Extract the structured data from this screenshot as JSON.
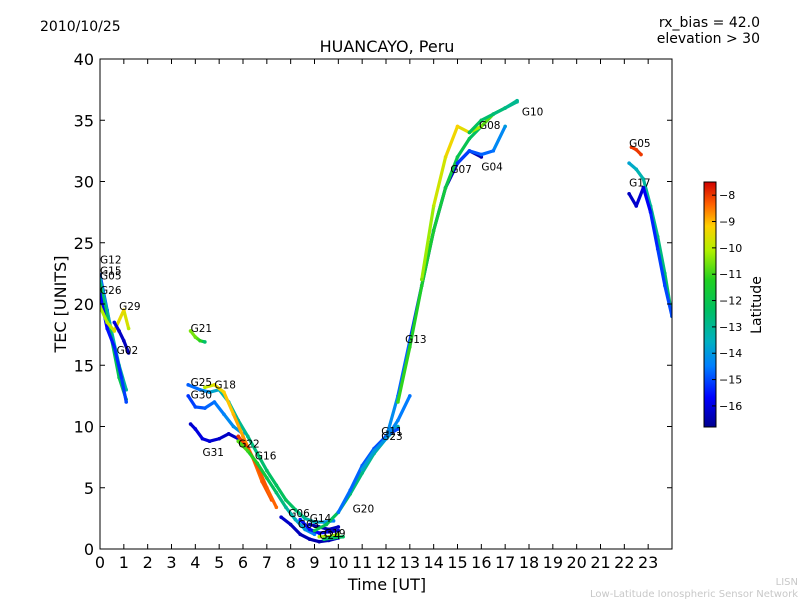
{
  "header": {
    "date": "2010/10/25",
    "rx_bias": "rx_bias = 42.0",
    "elevation": "elevation > 30",
    "title": "HUANCAYO, Peru"
  },
  "footer": {
    "line1": "LISN",
    "line2": "Low-Latitude Ionospheric Sensor Network"
  },
  "colorbar": {
    "label": "Latitude",
    "range": [
      -16.8,
      -7.5
    ],
    "ticks": [
      -8,
      -9,
      -10,
      -11,
      -12,
      -13,
      -14,
      -15,
      -16
    ],
    "tick_labels": [
      "−8",
      "−9",
      "−10",
      "−11",
      "−12",
      "−13",
      "−14",
      "−15",
      "−16"
    ]
  },
  "chart_data": {
    "type": "scatter",
    "title": "HUANCAYO, Peru",
    "xlabel": "Time [UT]",
    "ylabel": "TEC [UNITS]",
    "xlim": [
      0,
      24
    ],
    "ylim": [
      0,
      40
    ],
    "xticks": [
      0,
      1,
      2,
      3,
      4,
      5,
      6,
      7,
      8,
      9,
      10,
      11,
      12,
      13,
      14,
      15,
      16,
      17,
      18,
      19,
      20,
      21,
      22,
      23
    ],
    "yticks": [
      0,
      5,
      10,
      15,
      20,
      25,
      30,
      35,
      40
    ],
    "color_variable": "Latitude",
    "series": [
      {
        "name": "G12",
        "x": [
          0.0,
          0.3,
          0.6,
          0.9
        ],
        "y": [
          22.4,
          19.5,
          16.5,
          14.0
        ],
        "lat": [
          -14.8,
          -14.9,
          -15.0,
          -15.0
        ]
      },
      {
        "name": "G15",
        "x": [
          0.0,
          0.4,
          0.8,
          1.1
        ],
        "y": [
          22.0,
          18.5,
          15.0,
          13.0
        ],
        "lat": [
          -13.5,
          -13.4,
          -13.2,
          -13.0
        ]
      },
      {
        "name": "G05",
        "x": [
          0.0,
          0.4,
          0.8,
          1.1
        ],
        "y": [
          21.6,
          18.0,
          14.0,
          12.2
        ],
        "lat": [
          -12.5,
          -12.3,
          -12.1,
          -12.0
        ]
      },
      {
        "name": "G26",
        "x": [
          0.0,
          0.3,
          0.6,
          0.9,
          1.1
        ],
        "y": [
          20.8,
          18.0,
          16.5,
          14.0,
          12.0
        ],
        "lat": [
          -15.8,
          -15.6,
          -15.4,
          -15.2,
          -15.0
        ]
      },
      {
        "name": "G29",
        "x": [
          0.0,
          0.3,
          0.6,
          1.0,
          1.2
        ],
        "y": [
          19.8,
          18.5,
          17.8,
          19.5,
          18.0
        ],
        "lat": [
          -10.2,
          -10.0,
          -9.6,
          -9.3,
          -10.0
        ]
      },
      {
        "name": "G02",
        "x": [
          0.6,
          0.8,
          1.0,
          1.2
        ],
        "y": [
          18.5,
          17.8,
          17.0,
          16.0
        ],
        "lat": [
          -16.0,
          -16.2,
          -16.3,
          -16.4
        ]
      },
      {
        "name": "G21",
        "x": [
          3.8,
          4.0,
          4.2,
          4.4
        ],
        "y": [
          17.8,
          17.3,
          17.0,
          16.9
        ],
        "lat": [
          -10.5,
          -10.6,
          -11.2,
          -12.5
        ]
      },
      {
        "name": "G25",
        "x": [
          3.7,
          4.2,
          4.6,
          5.0,
          5.4,
          5.8,
          6.2,
          6.6,
          7.0,
          7.4,
          7.8,
          8.2,
          8.6,
          9.0,
          9.4,
          9.8
        ],
        "y": [
          13.4,
          13.0,
          12.8,
          13.0,
          12.0,
          10.5,
          9.2,
          7.8,
          6.4,
          5.2,
          4.0,
          3.2,
          2.5,
          2.2,
          2.2,
          2.3
        ],
        "lat": [
          -14.8,
          -14.5,
          -14.0,
          -13.5,
          -13.2,
          -13.0,
          -12.8,
          -12.6,
          -12.4,
          -12.3,
          -12.2,
          -12.5,
          -13.0,
          -13.5,
          -14.0,
          -14.5
        ]
      },
      {
        "name": "G30",
        "x": [
          3.7,
          4.0,
          4.4,
          4.8,
          5.2,
          5.6,
          6.0
        ],
        "y": [
          12.5,
          11.6,
          11.5,
          12.0,
          11.0,
          10.0,
          9.4
        ],
        "lat": [
          -15.2,
          -15.0,
          -14.8,
          -14.6,
          -14.4,
          -14.2,
          -14.0
        ]
      },
      {
        "name": "G18",
        "x": [
          4.4,
          4.8,
          5.2,
          5.6,
          6.0,
          6.4,
          6.8,
          7.2
        ],
        "y": [
          13.2,
          13.4,
          12.8,
          11.0,
          9.2,
          7.5,
          5.5,
          4.0
        ],
        "lat": [
          -10.0,
          -9.5,
          -9.2,
          -9.0,
          -8.8,
          -8.5,
          -8.3,
          -8.2
        ]
      },
      {
        "name": "G31",
        "x": [
          3.8,
          4.0,
          4.3,
          4.6,
          5.0,
          5.4,
          5.8
        ],
        "y": [
          10.2,
          9.8,
          9.0,
          8.8,
          9.0,
          9.4,
          9.0
        ],
        "lat": [
          -16.2,
          -16.0,
          -16.0,
          -16.1,
          -16.2,
          -16.3,
          -16.3
        ]
      },
      {
        "name": "G22",
        "x": [
          5.8,
          6.2,
          6.6,
          7.0,
          7.4
        ],
        "y": [
          9.2,
          8.2,
          6.8,
          5.0,
          3.4
        ],
        "lat": [
          -8.0,
          -8.1,
          -8.2,
          -8.3,
          -8.4
        ]
      },
      {
        "name": "G16",
        "x": [
          5.8,
          6.2,
          6.6,
          7.0,
          7.4,
          7.8,
          8.2,
          8.6,
          9.0
        ],
        "y": [
          8.8,
          8.0,
          7.0,
          5.8,
          4.6,
          3.4,
          2.4,
          1.6,
          1.2
        ],
        "lat": [
          -10.8,
          -11.0,
          -11.5,
          -12.0,
          -12.5,
          -13.0,
          -13.5,
          -14.0,
          -14.5
        ]
      },
      {
        "name": "G06",
        "x": [
          7.6,
          8.0,
          8.4,
          8.8,
          9.2,
          9.6,
          10.0
        ],
        "y": [
          2.6,
          2.0,
          1.2,
          0.8,
          0.6,
          0.7,
          0.9
        ],
        "lat": [
          -16.2,
          -16.3,
          -16.4,
          -16.5,
          -16.5,
          -16.4,
          -16.3
        ]
      },
      {
        "name": "G03",
        "x": [
          8.4,
          8.8,
          9.2,
          9.6,
          10.0
        ],
        "y": [
          2.4,
          1.6,
          1.3,
          1.4,
          1.5
        ],
        "lat": [
          -15.5,
          -15.6,
          -15.8,
          -16.0,
          -16.2
        ]
      },
      {
        "name": "G14",
        "x": [
          8.8,
          9.2,
          9.6,
          10.0
        ],
        "y": [
          2.0,
          1.8,
          1.6,
          1.8
        ],
        "lat": [
          -16.5,
          -16.5,
          -16.4,
          -16.3
        ]
      },
      {
        "name": "G19",
        "x": [
          9.2,
          9.6,
          10.0
        ],
        "y": [
          1.0,
          1.0,
          1.2
        ],
        "lat": [
          -10.0,
          -10.2,
          -10.4
        ]
      },
      {
        "name": "G24",
        "x": [
          9.4,
          9.8,
          10.2
        ],
        "y": [
          0.8,
          0.9,
          1.0
        ],
        "lat": [
          -12.5,
          -12.4,
          -12.3
        ]
      },
      {
        "name": "G20",
        "x": [
          9.0,
          9.5,
          10.0,
          10.5,
          11.0,
          11.5,
          12.0,
          12.5
        ],
        "y": [
          1.5,
          2.0,
          3.0,
          4.5,
          6.2,
          7.8,
          9.0,
          10.0
        ],
        "lat": [
          -12.0,
          -12.2,
          -12.4,
          -12.6,
          -12.8,
          -13.0,
          -13.2,
          -13.4
        ]
      },
      {
        "name": "G11",
        "x": [
          10.0,
          10.5,
          11.0,
          11.5,
          12.0,
          12.5
        ],
        "y": [
          3.0,
          4.8,
          6.8,
          8.2,
          9.2,
          9.8
        ],
        "lat": [
          -14.6,
          -14.7,
          -14.8,
          -14.9,
          -15.0,
          -15.0
        ]
      },
      {
        "name": "G23",
        "x": [
          11.0,
          11.5,
          12.0,
          12.5,
          13.0
        ],
        "y": [
          6.5,
          8.0,
          9.0,
          10.5,
          12.5
        ],
        "lat": [
          -13.8,
          -14.0,
          -14.2,
          -14.4,
          -14.6
        ]
      },
      {
        "name": "G13",
        "x": [
          12.0,
          12.5,
          13.0,
          13.5,
          14.0,
          14.5,
          15.0,
          15.5,
          16.0
        ],
        "y": [
          9.0,
          12.5,
          17.0,
          21.5,
          26.0,
          29.5,
          31.5,
          32.5,
          32.0
        ],
        "lat": [
          -14.0,
          -14.5,
          -15.0,
          -15.5,
          -16.0,
          -16.2,
          -16.4,
          -16.5,
          -16.5
        ]
      },
      {
        "name": "G07",
        "x": [
          12.5,
          13.0,
          13.5,
          14.0,
          14.5,
          15.0,
          15.5,
          16.0,
          16.5,
          17.0,
          17.5
        ],
        "y": [
          12.0,
          16.5,
          21.5,
          26.0,
          29.5,
          32.0,
          33.5,
          34.5,
          35.5,
          36.0,
          36.5
        ],
        "lat": [
          -11.0,
          -11.2,
          -11.4,
          -11.6,
          -11.8,
          -12.0,
          -12.2,
          -12.4,
          -12.6,
          -12.8,
          -13.0
        ]
      },
      {
        "name": "G08",
        "x": [
          13.5,
          14.0,
          14.5,
          15.0,
          15.5,
          16.0,
          16.5,
          17.0
        ],
        "y": [
          22.0,
          28.0,
          32.0,
          34.5,
          34.0,
          34.5,
          35.5,
          36.0
        ],
        "lat": [
          -10.5,
          -10.0,
          -9.5,
          -9.2,
          -9.8,
          -10.5,
          -11.0,
          -11.2
        ]
      },
      {
        "name": "G04",
        "x": [
          15.0,
          15.5,
          16.0,
          16.5,
          17.0
        ],
        "y": [
          31.5,
          32.5,
          32.2,
          32.5,
          34.5
        ],
        "lat": [
          -15.2,
          -15.0,
          -14.8,
          -14.6,
          -14.0
        ]
      },
      {
        "name": "G10",
        "x": [
          15.5,
          16.0,
          16.5,
          17.0,
          17.5
        ],
        "y": [
          34.0,
          35.0,
          35.5,
          36.0,
          36.6
        ],
        "lat": [
          -12.2,
          -12.4,
          -12.6,
          -12.8,
          -13.0
        ]
      },
      {
        "name": "G05",
        "x": [
          22.3,
          22.5,
          22.7
        ],
        "y": [
          32.8,
          32.6,
          32.2
        ],
        "lat": [
          -8.0,
          -8.0,
          -8.0
        ]
      },
      {
        "name": "G17",
        "x": [
          22.2,
          22.5,
          22.8,
          23.1,
          23.4,
          23.7,
          24.0
        ],
        "y": [
          31.5,
          31.0,
          30.2,
          28.0,
          25.5,
          22.5,
          19.0
        ],
        "lat": [
          -13.8,
          -13.5,
          -13.2,
          -13.0,
          -12.8,
          -12.6,
          -12.4
        ]
      },
      {
        "name": "G17",
        "x": [
          22.2,
          22.5,
          22.8,
          23.1,
          23.4,
          23.7,
          24.0
        ],
        "y": [
          29.0,
          28.0,
          29.5,
          27.5,
          24.5,
          21.5,
          19.0
        ],
        "lat": [
          -16.3,
          -16.2,
          -16.0,
          -15.5,
          -15.2,
          -15.0,
          -15.0
        ]
      }
    ],
    "labels": [
      {
        "text": "G12",
        "x": 0.0,
        "y": 23.3
      },
      {
        "text": "G15",
        "x": 0.0,
        "y": 22.4
      },
      {
        "text": "G05",
        "x": 0.0,
        "y": 22.0
      },
      {
        "text": "G26",
        "x": 0.0,
        "y": 20.8
      },
      {
        "text": "G29",
        "x": 0.8,
        "y": 19.5
      },
      {
        "text": "G02",
        "x": 0.7,
        "y": 15.9
      },
      {
        "text": "G21",
        "x": 3.8,
        "y": 17.7
      },
      {
        "text": "G25",
        "x": 3.8,
        "y": 13.3
      },
      {
        "text": "G18",
        "x": 4.8,
        "y": 13.1
      },
      {
        "text": "G30",
        "x": 3.8,
        "y": 12.3
      },
      {
        "text": "G31",
        "x": 4.3,
        "y": 7.6
      },
      {
        "text": "G22",
        "x": 5.8,
        "y": 8.3
      },
      {
        "text": "G16",
        "x": 6.5,
        "y": 7.3
      },
      {
        "text": "G06",
        "x": 7.9,
        "y": 2.6
      },
      {
        "text": "G14",
        "x": 8.8,
        "y": 2.2
      },
      {
        "text": "G03",
        "x": 8.3,
        "y": 1.7
      },
      {
        "text": "G19",
        "x": 9.4,
        "y": 1.0
      },
      {
        "text": "G24",
        "x": 9.2,
        "y": 0.8
      },
      {
        "text": "G20",
        "x": 10.6,
        "y": 3.0
      },
      {
        "text": "G11",
        "x": 11.8,
        "y": 9.3
      },
      {
        "text": "G23",
        "x": 11.8,
        "y": 8.9
      },
      {
        "text": "G13",
        "x": 12.8,
        "y": 16.8
      },
      {
        "text": "G08",
        "x": 15.9,
        "y": 34.3
      },
      {
        "text": "G07",
        "x": 14.7,
        "y": 30.7
      },
      {
        "text": "G04",
        "x": 16.0,
        "y": 30.9
      },
      {
        "text": "G10",
        "x": 17.7,
        "y": 35.4
      },
      {
        "text": "G05",
        "x": 22.2,
        "y": 32.8
      },
      {
        "text": "G17",
        "x": 22.2,
        "y": 29.6
      }
    ]
  }
}
